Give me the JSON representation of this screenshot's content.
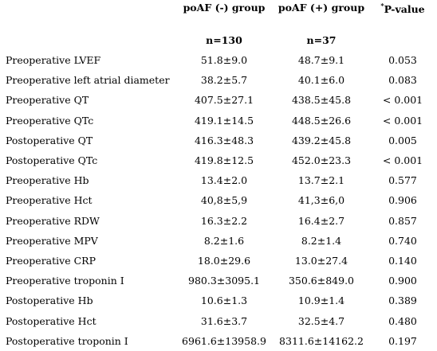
{
  "header": {
    "group_neg": "poAF (-) group",
    "group_pos": "poAF (+) group",
    "p_star": "*",
    "p_label": "P-value",
    "n_neg": "n=130",
    "n_pos": "n=37"
  },
  "rows": [
    {
      "label": "Preoperative LVEF",
      "neg": "51.8±9.0",
      "pos": "48.7±9.1",
      "p": "0.053"
    },
    {
      "label": "Preoperative left atrial diameter",
      "neg": "38.2±5.7",
      "pos": "40.1±6.0",
      "p": "0.083"
    },
    {
      "label": "Preoperative QT",
      "neg": "407.5±27.1",
      "pos": "438.5±45.8",
      "p": "< 0.001"
    },
    {
      "label": "Preoperative QTc",
      "neg": "419.1±14.5",
      "pos": "448.5±26.6",
      "p": "< 0.001"
    },
    {
      "label": "Postoperative QT",
      "neg": "416.3±48.3",
      "pos": "439.2±45.8",
      "p": "0.005"
    },
    {
      "label": "Postoperative QTc",
      "neg": "419.8±12.5",
      "pos": "452.0±23.3",
      "p": "< 0.001"
    },
    {
      "label": "Preoperative Hb",
      "neg": "13.4±2.0",
      "pos": "13.7±2.1",
      "p": "0.577"
    },
    {
      "label": "Preoperative Hct",
      "neg": "40,8±5,9",
      "pos": "41,3±6,0",
      "p": "0.906"
    },
    {
      "label": "Preoperative RDW",
      "neg": "16.3±2.2",
      "pos": "16.4±2.7",
      "p": "0.857"
    },
    {
      "label": "Preoperative MPV",
      "neg": "8.2±1.6",
      "pos": "8.2±1.4",
      "p": "0.740"
    },
    {
      "label": "Preoperative CRP",
      "neg": "18.0±29.6",
      "pos": "13.0±27.4",
      "p": "0.140"
    },
    {
      "label": "Preoperative troponin I",
      "neg": "980.3±3095.1",
      "pos": "350.6±849.0",
      "p": "0.900"
    },
    {
      "label": "Postoperative Hb",
      "neg": "10.6±1.3",
      "pos": "10.9±1.4",
      "p": "0.389"
    },
    {
      "label": "Postoperative Hct",
      "neg": "31.6±3.7",
      "pos": "32.5±4.7",
      "p": "0.480"
    },
    {
      "label": "Postoperative troponin I",
      "neg": "6961.6±13958.9",
      "pos": "8311.6±14162.2",
      "p": "0.197"
    }
  ]
}
